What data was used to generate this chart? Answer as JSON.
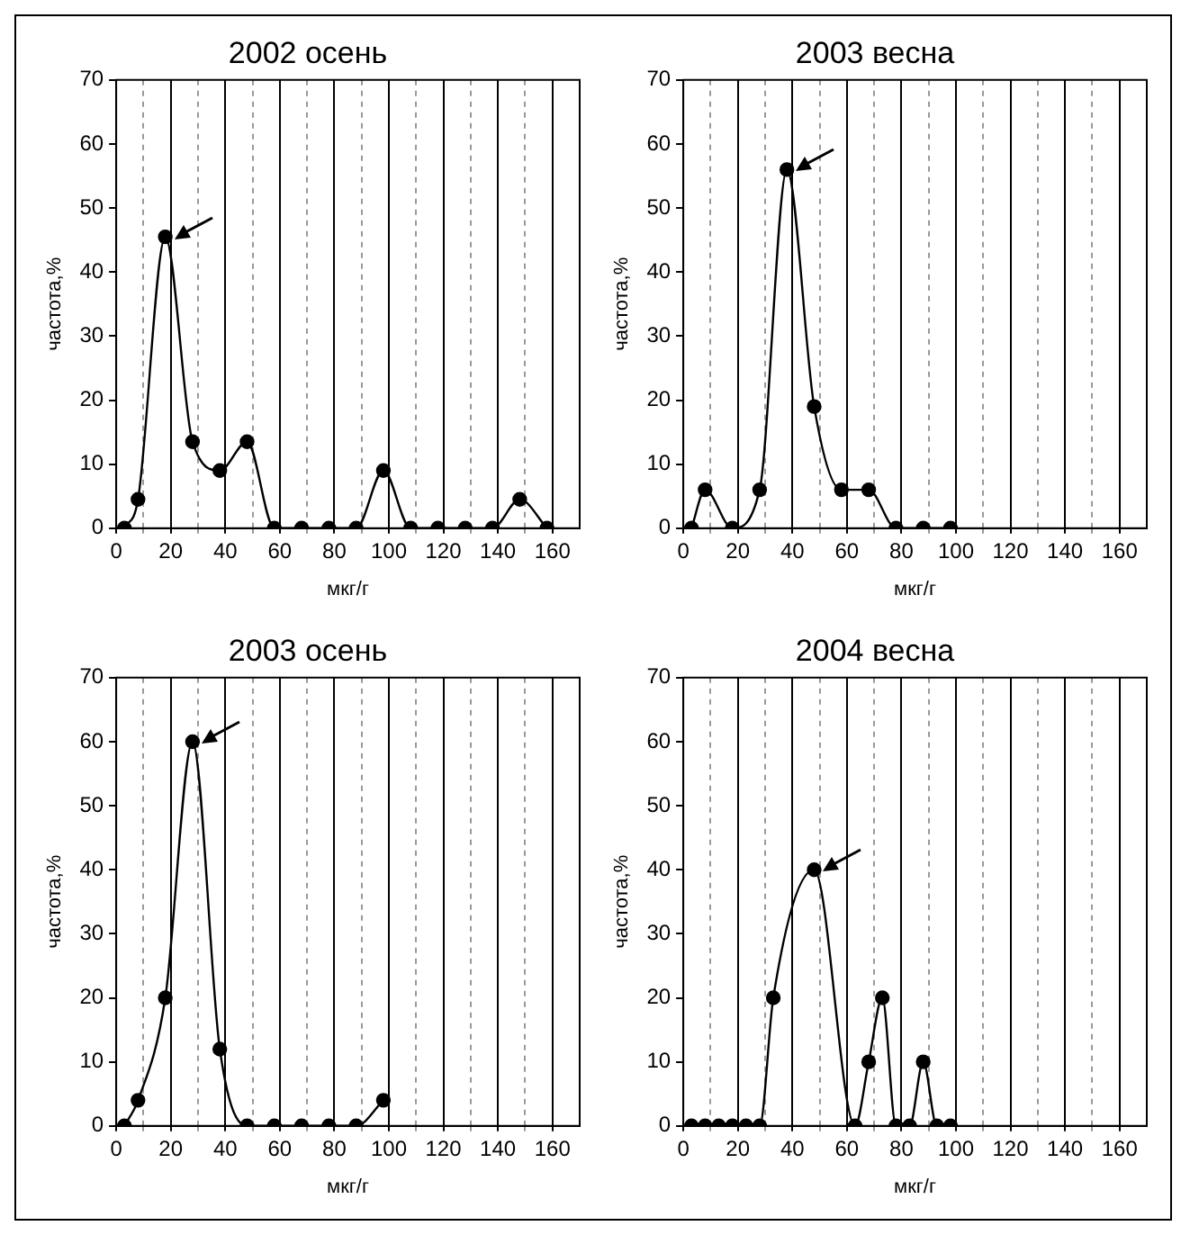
{
  "chart_data": [
    {
      "type": "line",
      "title": "2002 осень",
      "xlabel": "мкг/г",
      "ylabel": "частота,%",
      "x": [
        3,
        8,
        18,
        28,
        38,
        48,
        58,
        68,
        78,
        88,
        98,
        108,
        118,
        128,
        138,
        148,
        158
      ],
      "series": [
        {
          "color": "#000000",
          "values": [
            0,
            4.5,
            45.5,
            13.5,
            9,
            13.5,
            0,
            0,
            0,
            0,
            9,
            0,
            0,
            0,
            0,
            4.5,
            0
          ]
        }
      ],
      "xlim": [
        0,
        170
      ],
      "ylim": [
        0,
        70
      ],
      "xticks": [
        0,
        {
          "value": 10,
          "label": null
        },
        20,
        {
          "value": 30,
          "label": null
        },
        40,
        {
          "value": 50,
          "label": null
        },
        60,
        {
          "value": 70,
          "label": null
        },
        80,
        {
          "value": 90,
          "label": null
        },
        100,
        {
          "value": 110,
          "label": null
        },
        120,
        {
          "value": 130,
          "label": null
        },
        140,
        {
          "value": 150,
          "label": null
        },
        160
      ],
      "yticks": [
        0,
        10,
        20,
        30,
        40,
        50,
        60,
        70
      ],
      "grid": "x",
      "legend": false,
      "marker": "circle",
      "line_style": "solid"
    },
    {
      "type": "line",
      "title": "2003 весна",
      "xlabel": "мкг/г",
      "ylabel": "частота,%",
      "x": [
        3,
        8,
        18,
        28,
        38,
        48,
        58,
        68,
        78,
        88,
        98
      ],
      "series": [
        {
          "color": "#000000",
          "values": [
            0,
            6,
            0,
            6,
            56,
            19,
            6,
            6,
            0,
            0,
            0
          ]
        }
      ],
      "xlim": [
        0,
        170
      ],
      "ylim": [
        0,
        70
      ],
      "xticks": [
        0,
        {
          "value": 10,
          "label": null
        },
        20,
        {
          "value": 30,
          "label": null
        },
        40,
        {
          "value": 50,
          "label": null
        },
        60,
        {
          "value": 70,
          "label": null
        },
        80,
        {
          "value": 90,
          "label": null
        },
        100,
        {
          "value": 110,
          "label": null
        },
        120,
        {
          "value": 130,
          "label": null
        },
        140,
        {
          "value": 150,
          "label": null
        },
        160
      ],
      "yticks": [
        0,
        10,
        20,
        30,
        40,
        50,
        60,
        70
      ],
      "grid": "x",
      "legend": false,
      "marker": "circle",
      "line_style": "solid"
    },
    {
      "type": "line",
      "title": "2003 осень",
      "xlabel": "мкг/г",
      "ylabel": "частота,%",
      "x": [
        3,
        8,
        18,
        28,
        38,
        48,
        58,
        68,
        78,
        88,
        98
      ],
      "series": [
        {
          "color": "#000000",
          "values": [
            0,
            4,
            20,
            60,
            12,
            0,
            0,
            0,
            0,
            0,
            4
          ]
        }
      ],
      "xlim": [
        0,
        170
      ],
      "ylim": [
        0,
        70
      ],
      "xticks": [
        0,
        {
          "value": 10,
          "label": null
        },
        20,
        {
          "value": 30,
          "label": null
        },
        40,
        {
          "value": 50,
          "label": null
        },
        60,
        {
          "value": 70,
          "label": null
        },
        80,
        {
          "value": 90,
          "label": null
        },
        100,
        {
          "value": 110,
          "label": null
        },
        120,
        {
          "value": 130,
          "label": null
        },
        140,
        {
          "value": 150,
          "label": null
        },
        160
      ],
      "yticks": [
        0,
        10,
        20,
        30,
        40,
        50,
        60,
        70
      ],
      "grid": "x",
      "legend": false,
      "marker": "circle",
      "line_style": "solid"
    },
    {
      "type": "line",
      "title": "2004 весна",
      "xlabel": "мкг/г",
      "ylabel": "частота,%",
      "x": [
        3,
        8,
        13,
        18,
        23,
        28,
        33,
        48,
        63,
        68,
        73,
        78,
        83,
        88,
        93,
        98
      ],
      "series": [
        {
          "color": "#000000",
          "values": [
            0,
            0,
            0,
            0,
            0,
            0,
            20,
            40,
            0,
            10,
            20,
            0,
            0,
            10,
            0,
            0
          ]
        }
      ],
      "xlim": [
        0,
        170
      ],
      "ylim": [
        0,
        70
      ],
      "xticks": [
        0,
        {
          "value": 10,
          "label": null
        },
        20,
        {
          "value": 30,
          "label": null
        },
        40,
        {
          "value": 50,
          "label": null
        },
        60,
        {
          "value": 70,
          "label": null
        },
        80,
        {
          "value": 90,
          "label": null
        },
        100,
        {
          "value": 110,
          "label": null
        },
        120,
        {
          "value": 130,
          "label": null
        },
        140,
        {
          "value": 150,
          "label": null
        },
        160
      ],
      "yticks": [
        0,
        10,
        20,
        30,
        40,
        50,
        60,
        70
      ],
      "grid": "x",
      "legend": false,
      "marker": "circle",
      "line_style": "solid"
    }
  ]
}
